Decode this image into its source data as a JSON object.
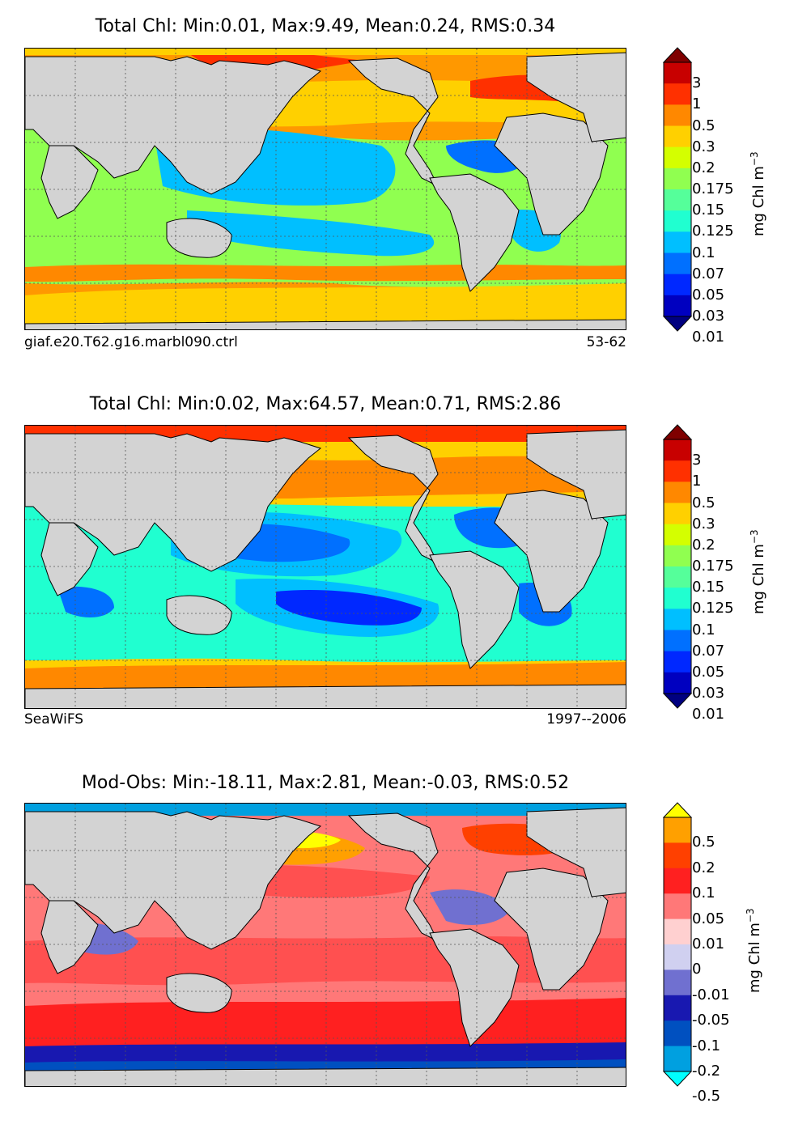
{
  "panels": [
    {
      "title": "Total Chl: Min:0.01, Max:9.49, Mean:0.24, RMS:0.34",
      "label_left": "giaf.e20.T62.g16.marbl090.ctrl",
      "label_right": "53-62",
      "colorbar": {
        "ticks": [
          "3",
          "1",
          "0.5",
          "0.3",
          "0.2",
          "0.175",
          "0.15",
          "0.125",
          "0.1",
          "0.07",
          "0.05",
          "0.03",
          "0.01"
        ],
        "colors": [
          "#7f0000",
          "#c80000",
          "#ff3000",
          "#ff8800",
          "#ffd000",
          "#d4ff00",
          "#90ff50",
          "#55ff9a",
          "#20ffd0",
          "#00bfff",
          "#0070ff",
          "#0028ff",
          "#0000c0",
          "#000080"
        ],
        "unit": "mg Chl m",
        "unit_exp": "−3"
      }
    },
    {
      "title": "Total Chl: Min:0.02, Max:64.57, Mean:0.71, RMS:2.86",
      "label_left": "SeaWiFS",
      "label_right": "1997--2006",
      "colorbar": {
        "ticks": [
          "3",
          "1",
          "0.5",
          "0.3",
          "0.2",
          "0.175",
          "0.15",
          "0.125",
          "0.1",
          "0.07",
          "0.05",
          "0.03",
          "0.01"
        ],
        "colors": [
          "#7f0000",
          "#c80000",
          "#ff3000",
          "#ff8800",
          "#ffd000",
          "#d4ff00",
          "#90ff50",
          "#55ff9a",
          "#20ffd0",
          "#00bfff",
          "#0070ff",
          "#0028ff",
          "#0000c0",
          "#000080"
        ],
        "unit": "mg Chl m",
        "unit_exp": "−3"
      }
    },
    {
      "title": "Mod-Obs: Min:-18.11, Max:2.81, Mean:-0.03, RMS:0.52",
      "label_left": "",
      "label_right": "",
      "colorbar": {
        "ticks": [
          "0.5",
          "0.2",
          "0.1",
          "0.05",
          "0.01",
          "0",
          "-0.01",
          "-0.05",
          "-0.1",
          "-0.2",
          "-0.5"
        ],
        "colors": [
          "#ffff00",
          "#ffa000",
          "#ff4000",
          "#ff2020",
          "#ff7878",
          "#ffd0d0",
          "#d0d0f0",
          "#7070d0",
          "#1818b0",
          "#0050c0",
          "#00a0e0",
          "#00ffff"
        ],
        "unit": "mg Chl m",
        "unit_exp": "−3"
      }
    }
  ]
}
